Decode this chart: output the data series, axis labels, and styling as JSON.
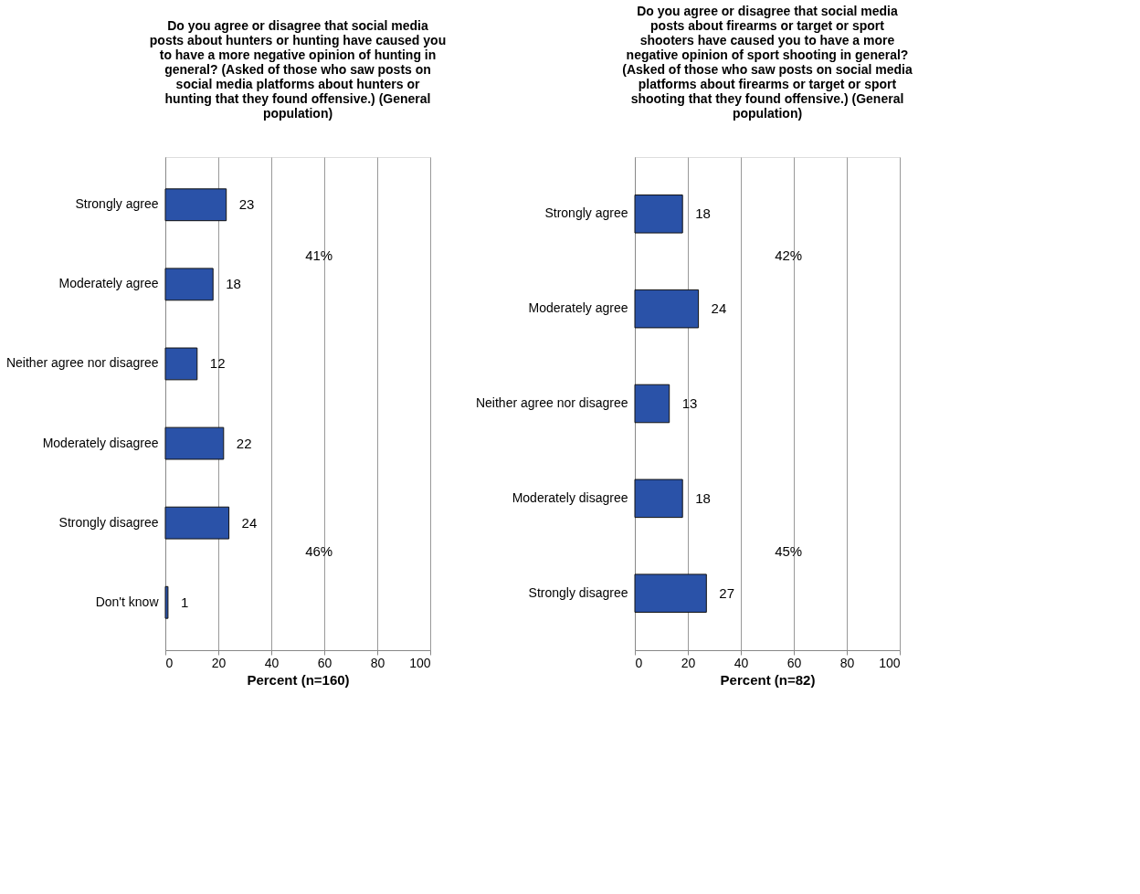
{
  "chart_data": [
    {
      "type": "bar",
      "orientation": "horizontal",
      "title": "Do you agree or disagree that social media posts about hunters or hunting have caused you to have a more negative opinion of hunting in general? (Asked of those who saw posts on social media platforms about hunters or hunting that they found offensive.) (General population)",
      "xlabel": "Percent (n=160)",
      "categories": [
        "Strongly agree",
        "Moderately agree",
        "Neither agree nor disagree",
        "Moderately disagree",
        "Strongly disagree",
        "Don't know"
      ],
      "values": [
        23,
        18,
        12,
        22,
        24,
        1
      ],
      "color": "#2a52a8",
      "xlim": [
        0,
        100
      ],
      "xticks": [
        0,
        20,
        40,
        60,
        80,
        100
      ],
      "grid": "x",
      "data_labels": true,
      "annotations": [
        "41%",
        "46%"
      ]
    },
    {
      "type": "bar",
      "orientation": "horizontal",
      "title": "Do you agree or disagree that social media posts about firearms or target or sport shooters have caused you to have a more negative opinion of sport shooting in general? (Asked of those who saw posts on social media platforms about firearms or target or sport shooting that they found offensive.) (General population)",
      "xlabel": "Percent (n=82)",
      "categories": [
        "Strongly agree",
        "Moderately agree",
        "Neither agree nor disagree",
        "Moderately disagree",
        "Strongly disagree"
      ],
      "values": [
        18,
        24,
        13,
        18,
        27
      ],
      "color": "#2a52a8",
      "xlim": [
        0,
        100
      ],
      "xticks": [
        0,
        20,
        40,
        60,
        80,
        100
      ],
      "grid": "x",
      "data_labels": true,
      "annotations": [
        "42%",
        "45%"
      ]
    }
  ]
}
